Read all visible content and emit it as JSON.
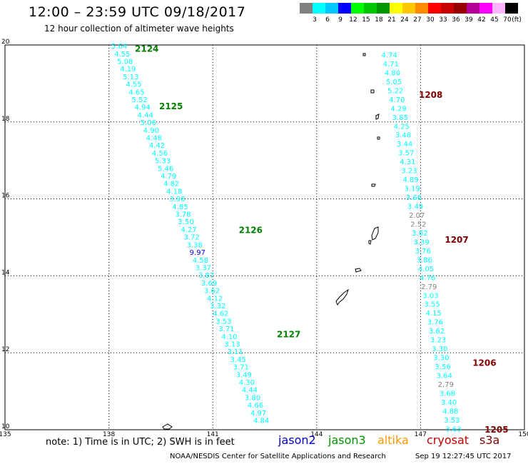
{
  "header": {
    "title": "12:00 – 23:59 UTC 09/18/2017",
    "subtitle": "12 hour collection of altimeter wave heights"
  },
  "legend": {
    "unit": "(ft)",
    "bins": [
      {
        "label": "3",
        "color": "#808080"
      },
      {
        "label": "6",
        "color": "#00ffff"
      },
      {
        "label": "9",
        "color": "#00c8ff"
      },
      {
        "label": "12",
        "color": "#0000ff"
      },
      {
        "label": "15",
        "color": "#00ff00"
      },
      {
        "label": "18",
        "color": "#00c800"
      },
      {
        "label": "21",
        "color": "#009600"
      },
      {
        "label": "24",
        "color": "#ffff00"
      },
      {
        "label": "27",
        "color": "#ffc800"
      },
      {
        "label": "30",
        "color": "#ff8c00"
      },
      {
        "label": "33",
        "color": "#ff0000"
      },
      {
        "label": "36",
        "color": "#c80000"
      },
      {
        "label": "39",
        "color": "#960000"
      },
      {
        "label": "42",
        "color": "#b40096"
      },
      {
        "label": "45",
        "color": "#ff00ff"
      },
      {
        "label": "70",
        "color": "#ffb4ff"
      },
      {
        "label": "",
        "color": "#000000"
      }
    ]
  },
  "axes": {
    "x_ticks": [
      "135",
      "138",
      "141",
      "144",
      "147",
      "150"
    ],
    "y_ticks": [
      "20",
      "18",
      "16",
      "14",
      "12",
      "10"
    ],
    "lon_range": [
      135,
      150
    ],
    "lat_range": [
      10,
      20
    ]
  },
  "tracks": [
    {
      "id": "west",
      "start": {
        "lon": 138.3,
        "lat": 19.98
      },
      "end": {
        "lon": 142.4,
        "lat": 10.25
      },
      "values": [
        {
          "v": "5.64",
          "c": "#00ffff"
        },
        {
          "v": "4.55",
          "c": "#00ffff"
        },
        {
          "v": "5.08",
          "c": "#00ffff"
        },
        {
          "v": "4.19",
          "c": "#00ffff"
        },
        {
          "v": "5.13",
          "c": "#00ffff"
        },
        {
          "v": "4.55",
          "c": "#00ffff"
        },
        {
          "v": "4.65",
          "c": "#00ffff"
        },
        {
          "v": "5.52",
          "c": "#00ffff"
        },
        {
          "v": "4.94",
          "c": "#00ffff"
        },
        {
          "v": "4.44",
          "c": "#00ffff"
        },
        {
          "v": "5.06",
          "c": "#00ffff"
        },
        {
          "v": "4.90",
          "c": "#00ffff"
        },
        {
          "v": "4.48",
          "c": "#00ffff"
        },
        {
          "v": "4.42",
          "c": "#00ffff"
        },
        {
          "v": "4.56",
          "c": "#00ffff"
        },
        {
          "v": "5.33",
          "c": "#00ffff"
        },
        {
          "v": "5.46",
          "c": "#00ffff"
        },
        {
          "v": "4.79",
          "c": "#00ffff"
        },
        {
          "v": "4.82",
          "c": "#00ffff"
        },
        {
          "v": "4.18",
          "c": "#00ffff"
        },
        {
          "v": "3.96",
          "c": "#00ffff"
        },
        {
          "v": "4.85",
          "c": "#00ffff"
        },
        {
          "v": "3.78",
          "c": "#00ffff"
        },
        {
          "v": "3.50",
          "c": "#00ffff"
        },
        {
          "v": "4.27",
          "c": "#00ffff"
        },
        {
          "v": "3.72",
          "c": "#00ffff"
        },
        {
          "v": "3.38",
          "c": "#00ffff"
        },
        {
          "v": "9.97",
          "c": "#0000ff"
        },
        {
          "v": "4.58",
          "c": "#00ffff"
        },
        {
          "v": "3.37",
          "c": "#00ffff"
        },
        {
          "v": "3.87",
          "c": "#00ffff"
        },
        {
          "v": "3.69",
          "c": "#00ffff"
        },
        {
          "v": "3.62",
          "c": "#00ffff"
        },
        {
          "v": "4.12",
          "c": "#00ffff"
        },
        {
          "v": "3.32",
          "c": "#00ffff"
        },
        {
          "v": "4.62",
          "c": "#00ffff"
        },
        {
          "v": "3.53",
          "c": "#00ffff"
        },
        {
          "v": "3.71",
          "c": "#00ffff"
        },
        {
          "v": "4.10",
          "c": "#00ffff"
        },
        {
          "v": "3.13",
          "c": "#00ffff"
        },
        {
          "v": "3.11",
          "c": "#00ffff"
        },
        {
          "v": "3.45",
          "c": "#00ffff"
        },
        {
          "v": "3.71",
          "c": "#00ffff"
        },
        {
          "v": "3.49",
          "c": "#00ffff"
        },
        {
          "v": "4.30",
          "c": "#00ffff"
        },
        {
          "v": "4.44",
          "c": "#00ffff"
        },
        {
          "v": "3.80",
          "c": "#00ffff"
        },
        {
          "v": "4.66",
          "c": "#00ffff"
        },
        {
          "v": "4.97",
          "c": "#00ffff"
        },
        {
          "v": "4.84",
          "c": "#00ffff"
        }
      ]
    },
    {
      "id": "east",
      "start": {
        "lon": 146.1,
        "lat": 19.75
      },
      "end": {
        "lon": 147.95,
        "lat": 10.03
      },
      "values": [
        {
          "v": "4.74",
          "c": "#00ffff"
        },
        {
          "v": "4.71",
          "c": "#00ffff"
        },
        {
          "v": "4.80",
          "c": "#00ffff"
        },
        {
          "v": "5.05",
          "c": "#00ffff"
        },
        {
          "v": "5.22",
          "c": "#00ffff"
        },
        {
          "v": "4.70",
          "c": "#00ffff"
        },
        {
          "v": "4.29",
          "c": "#00ffff"
        },
        {
          "v": "3.85",
          "c": "#00ffff"
        },
        {
          "v": "4.25",
          "c": "#00ffff"
        },
        {
          "v": "3.48",
          "c": "#00ffff"
        },
        {
          "v": "3.44",
          "c": "#00ffff"
        },
        {
          "v": "3.57",
          "c": "#00ffff"
        },
        {
          "v": "4.31",
          "c": "#00ffff"
        },
        {
          "v": "3.23",
          "c": "#00ffff"
        },
        {
          "v": "4.89",
          "c": "#00ffff"
        },
        {
          "v": "3.19",
          "c": "#00ffff"
        },
        {
          "v": "3.66",
          "c": "#00ffff"
        },
        {
          "v": "3.49",
          "c": "#00ffff"
        },
        {
          "v": "2.07",
          "c": "#808080"
        },
        {
          "v": "2.52",
          "c": "#808080"
        },
        {
          "v": "3.62",
          "c": "#00ffff"
        },
        {
          "v": "3.39",
          "c": "#00ffff"
        },
        {
          "v": "3.76",
          "c": "#00ffff"
        },
        {
          "v": "3.86",
          "c": "#00ffff"
        },
        {
          "v": "4.05",
          "c": "#00ffff"
        },
        {
          "v": "4.76",
          "c": "#00ffff"
        },
        {
          "v": "2.79",
          "c": "#808080"
        },
        {
          "v": "3.03",
          "c": "#00ffff"
        },
        {
          "v": "3.55",
          "c": "#00ffff"
        },
        {
          "v": "4.15",
          "c": "#00ffff"
        },
        {
          "v": "3.76",
          "c": "#00ffff"
        },
        {
          "v": "3.62",
          "c": "#00ffff"
        },
        {
          "v": "3.23",
          "c": "#00ffff"
        },
        {
          "v": "3.30",
          "c": "#00ffff"
        },
        {
          "v": "3.30",
          "c": "#00ffff"
        },
        {
          "v": "3.56",
          "c": "#00ffff"
        },
        {
          "v": "3.64",
          "c": "#00ffff"
        },
        {
          "v": "2.79",
          "c": "#808080"
        },
        {
          "v": "3.68",
          "c": "#00ffff"
        },
        {
          "v": "3.40",
          "c": "#00ffff"
        },
        {
          "v": "4.88",
          "c": "#00ffff"
        },
        {
          "v": "3.53",
          "c": "#00ffff"
        },
        {
          "v": "3.63",
          "c": "#00ffff"
        }
      ]
    }
  ],
  "time_labels": [
    {
      "text": "2124",
      "color": "#008000",
      "lon": 138.75,
      "lat": 19.92
    },
    {
      "text": "2125",
      "color": "#008000",
      "lon": 139.45,
      "lat": 18.42
    },
    {
      "text": "2126",
      "color": "#008000",
      "lon": 141.75,
      "lat": 15.2
    },
    {
      "text": "2127",
      "color": "#008000",
      "lon": 142.85,
      "lat": 12.5
    },
    {
      "text": "1208",
      "color": "#800000",
      "lon": 146.95,
      "lat": 18.72
    },
    {
      "text": "1207",
      "color": "#800000",
      "lon": 147.7,
      "lat": 14.95
    },
    {
      "text": "1206",
      "color": "#800000",
      "lon": 148.5,
      "lat": 11.75
    },
    {
      "text": "1205",
      "color": "#800000",
      "lon": 148.85,
      "lat": 10.02
    }
  ],
  "satellites": [
    {
      "name": "jason2",
      "color": "#0000c8"
    },
    {
      "name": "jason3",
      "color": "#009600"
    },
    {
      "name": "altika",
      "color": "#ff9600"
    },
    {
      "name": "cryosat",
      "color": "#c80000"
    },
    {
      "name": "s3a",
      "color": "#800000"
    }
  ],
  "footer": {
    "note": "note: 1) Time is in UTC; 2) SWH is in feet",
    "credit": "NOAA/NESDIS Center for Satellite Applications and Research",
    "timestamp": "Sep 19 12:27:45 UTC 2017"
  }
}
